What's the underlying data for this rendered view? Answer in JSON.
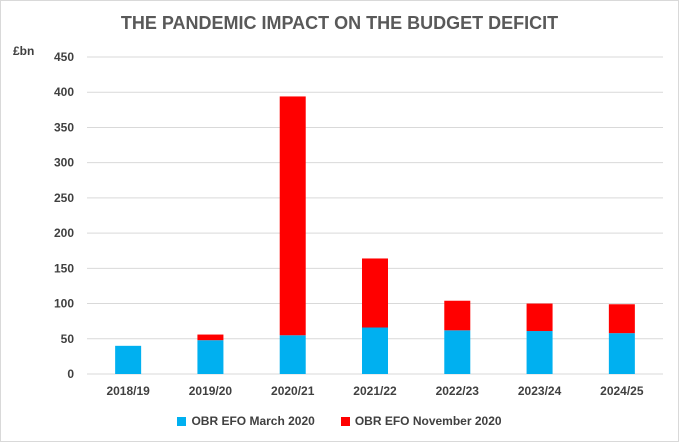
{
  "chart_data": {
    "type": "bar",
    "stacked": true,
    "title": "THE PANDEMIC IMPACT ON THE BUDGET DEFICIT",
    "ylabel": "£bn",
    "xlabel": "",
    "categories": [
      "2018/19",
      "2019/20",
      "2020/21",
      "2021/22",
      "2022/23",
      "2023/24",
      "2024/25"
    ],
    "ylim": [
      0,
      450
    ],
    "yticks": [
      0,
      50,
      100,
      150,
      200,
      250,
      300,
      350,
      400,
      450
    ],
    "grid": true,
    "legend_position": "bottom",
    "series": [
      {
        "name": "OBR EFO March 2020",
        "color": "#00b0f0",
        "values": [
          40,
          48,
          55,
          66,
          62,
          61,
          58
        ]
      },
      {
        "name": "OBR EFO November 2020",
        "color": "#ff0000",
        "values": [
          0,
          8,
          339,
          98,
          42,
          39,
          41
        ]
      }
    ]
  }
}
